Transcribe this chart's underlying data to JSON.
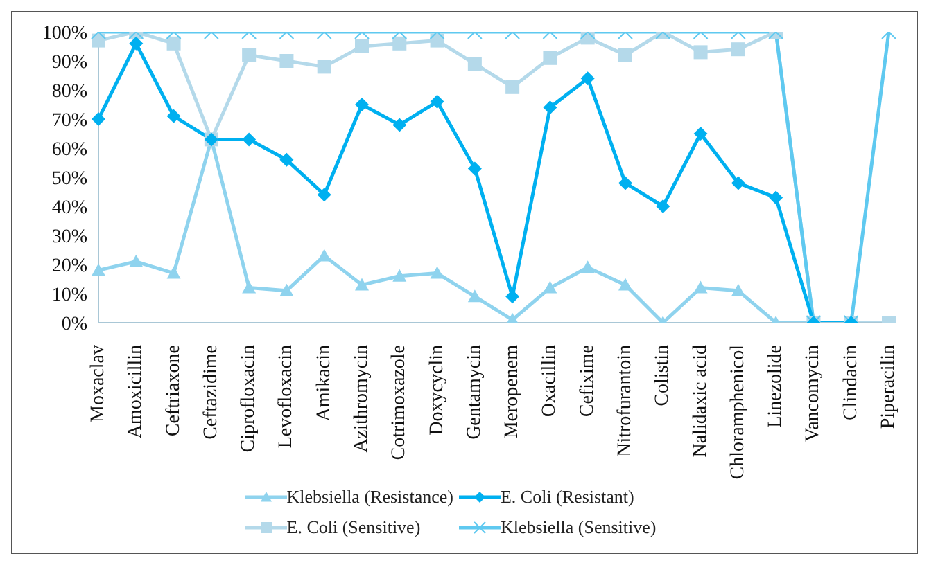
{
  "chart_data": {
    "type": "line",
    "categories": [
      "Moxaclav",
      "Amoxicillin",
      "Ceftriaxone",
      "Ceftazidime",
      "Ciprofloxacin",
      "Levofloxacin",
      "Amikacin",
      "Azithromycin",
      "Cotrimoxazole",
      "Doxycyclin",
      "Gentamycin",
      "Meropenem",
      "Oxacillin",
      "Cefixime",
      "Nitrofurantoin",
      "Colistin",
      "Nalidaxic acid",
      "Chloramphenicol",
      "Linezolide",
      "Vancomycin",
      "Clindacin",
      "Piperacilin"
    ],
    "series": [
      {
        "name": "Klebsiella (Resistance)",
        "color": "#8fd3ee",
        "marker": "triangle",
        "values": [
          18,
          21,
          17,
          63,
          12,
          11,
          23,
          13,
          16,
          17,
          9,
          1,
          12,
          19,
          13,
          0,
          12,
          11,
          0,
          0,
          0,
          null
        ]
      },
      {
        "name": "E. Coli (Resistant)",
        "color": "#00b0f0",
        "marker": "diamond",
        "values": [
          70,
          96,
          71,
          63,
          63,
          56,
          44,
          75,
          68,
          76,
          53,
          9,
          74,
          84,
          48,
          40,
          65,
          48,
          43,
          0,
          0,
          null
        ]
      },
      {
        "name": "E. Coli (Sensitive)",
        "color": "#b4d9ea",
        "marker": "square",
        "values": [
          97,
          100,
          96,
          63,
          92,
          90,
          88,
          95,
          96,
          97,
          89,
          81,
          91,
          98,
          92,
          100,
          93,
          94,
          100,
          0,
          0,
          0
        ]
      },
      {
        "name": "Klebsiella (Sensitive)",
        "color": "#5fc9f0",
        "marker": "cross",
        "values": [
          100,
          100,
          100,
          100,
          100,
          100,
          100,
          100,
          100,
          100,
          100,
          100,
          100,
          100,
          100,
          100,
          100,
          100,
          100,
          0,
          0,
          100
        ]
      }
    ],
    "ylim": [
      0,
      100
    ],
    "yticks": [
      {
        "value": 0,
        "label": "0%"
      },
      {
        "value": 10,
        "label": "10%"
      },
      {
        "value": 20,
        "label": "20%"
      },
      {
        "value": 30,
        "label": "30%"
      },
      {
        "value": 40,
        "label": "40%"
      },
      {
        "value": 50,
        "label": "50%"
      },
      {
        "value": 60,
        "label": "60%"
      },
      {
        "value": 70,
        "label": "70%"
      },
      {
        "value": 80,
        "label": "80%"
      },
      {
        "value": 90,
        "label": "90%"
      },
      {
        "value": 100,
        "label": "100%"
      }
    ],
    "grid": false,
    "legend": "bottom"
  }
}
